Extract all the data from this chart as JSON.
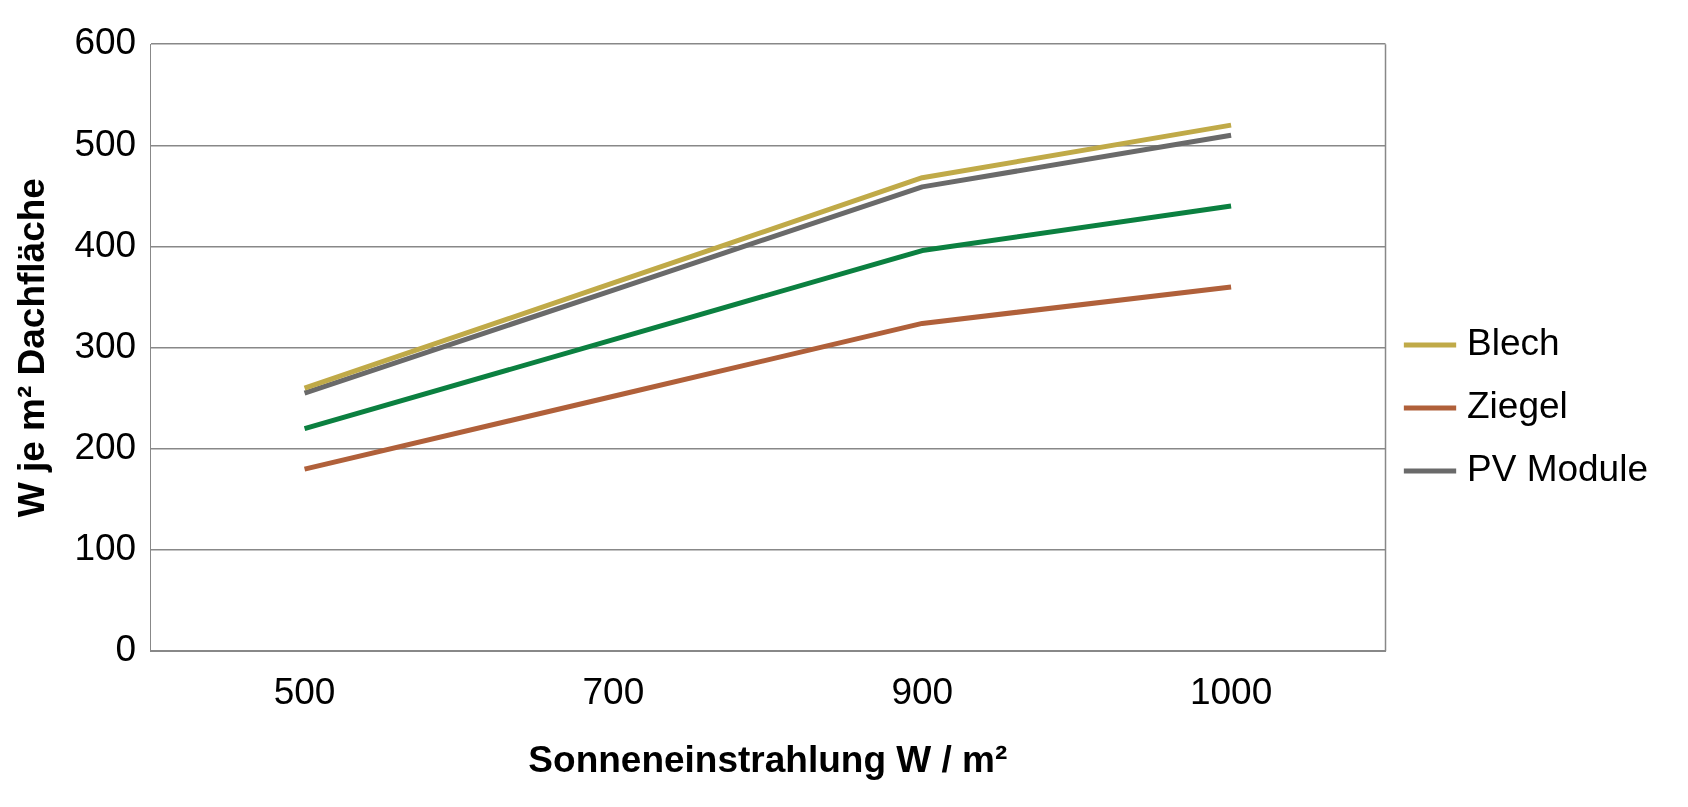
{
  "chart_data": {
    "type": "line",
    "xlabel": "Sonneneinstrahlung W / m²",
    "ylabel": "W je m² Dachfläche",
    "categories": [
      "500",
      "700",
      "900",
      "1000"
    ],
    "series": [
      {
        "color": "#0b8040",
        "values": [
          220,
          308,
          396,
          440
        ]
      },
      {
        "name": "Blech",
        "color": "#c0aa48",
        "values": [
          260,
          364,
          468,
          520
        ]
      },
      {
        "name": "Ziegel",
        "color": "#b0603a",
        "values": [
          180,
          252,
          324,
          360
        ]
      },
      {
        "name": "PV Module",
        "color": "#6a6a6a",
        "values": [
          255,
          357,
          459,
          510
        ]
      }
    ],
    "ylim": [
      0,
      600
    ],
    "yticks": [
      0,
      100,
      200,
      300,
      400,
      500,
      600
    ],
    "grid": "y",
    "legend": "right",
    "marker": "none",
    "line_style": "solid"
  }
}
